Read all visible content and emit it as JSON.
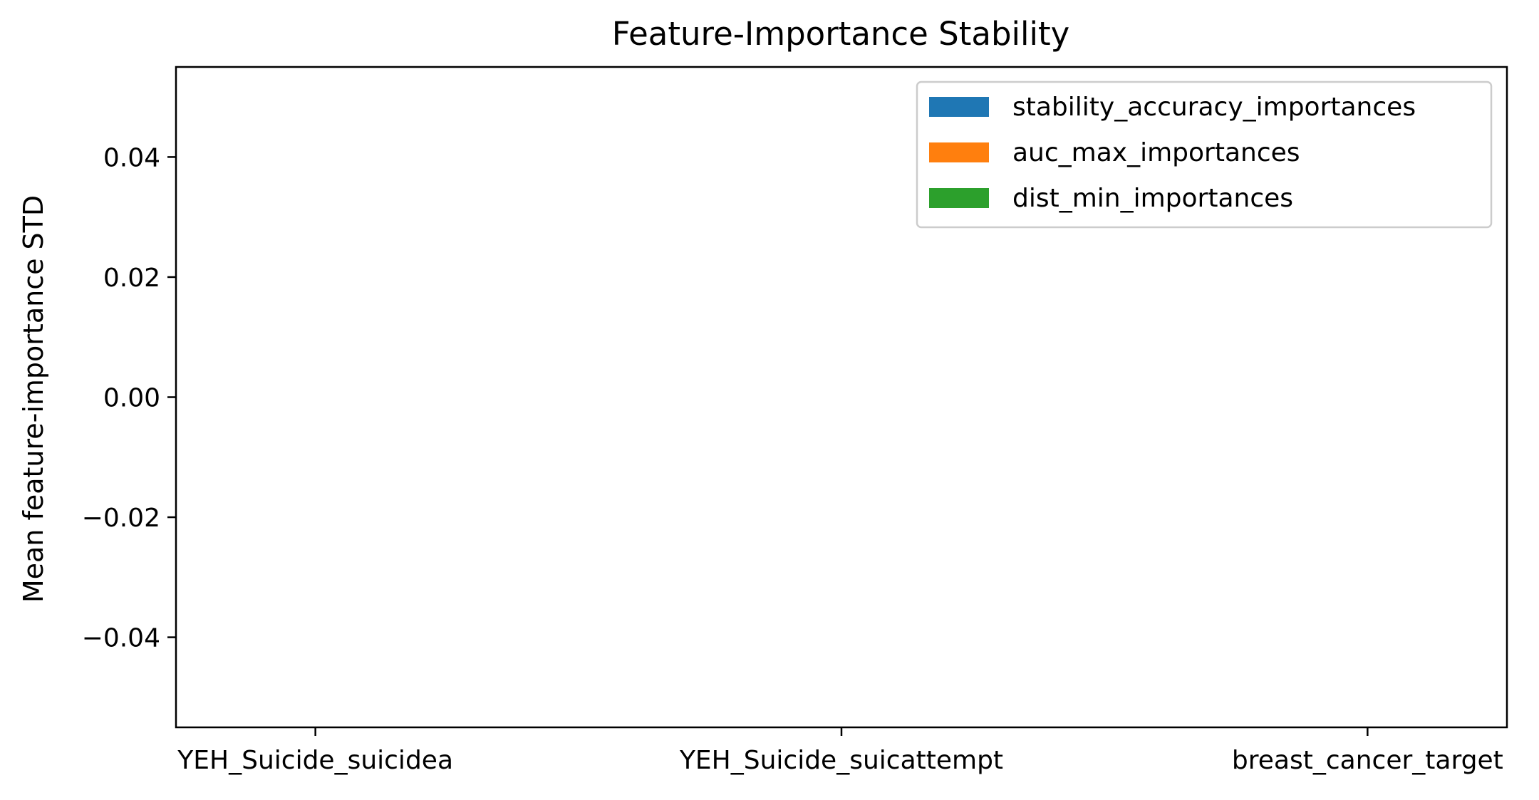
{
  "chart_data": {
    "type": "bar",
    "title": "Feature-Importance Stability",
    "xlabel": "",
    "ylabel": "Mean feature-importance STD",
    "categories": [
      "YEH_Suicide_suicidea",
      "YEH_Suicide_suicattempt",
      "breast_cancer_target"
    ],
    "series": [
      {
        "name": "stability_accuracy_importances",
        "color": "#1f77b4",
        "values": [
          0,
          0,
          0
        ]
      },
      {
        "name": "auc_max_importances",
        "color": "#ff7f0e",
        "values": [
          0,
          0,
          0
        ]
      },
      {
        "name": "dist_min_importances",
        "color": "#2ca02c",
        "values": [
          0,
          0,
          0
        ]
      }
    ],
    "ylim": [
      -0.055,
      0.055
    ],
    "yticks": [
      -0.04,
      -0.02,
      0.0,
      0.02,
      0.04
    ],
    "ytick_labels": [
      "−0.04",
      "−0.02",
      "0.00",
      "0.02",
      "0.04"
    ],
    "grid": false,
    "legend_position": "top-right"
  }
}
